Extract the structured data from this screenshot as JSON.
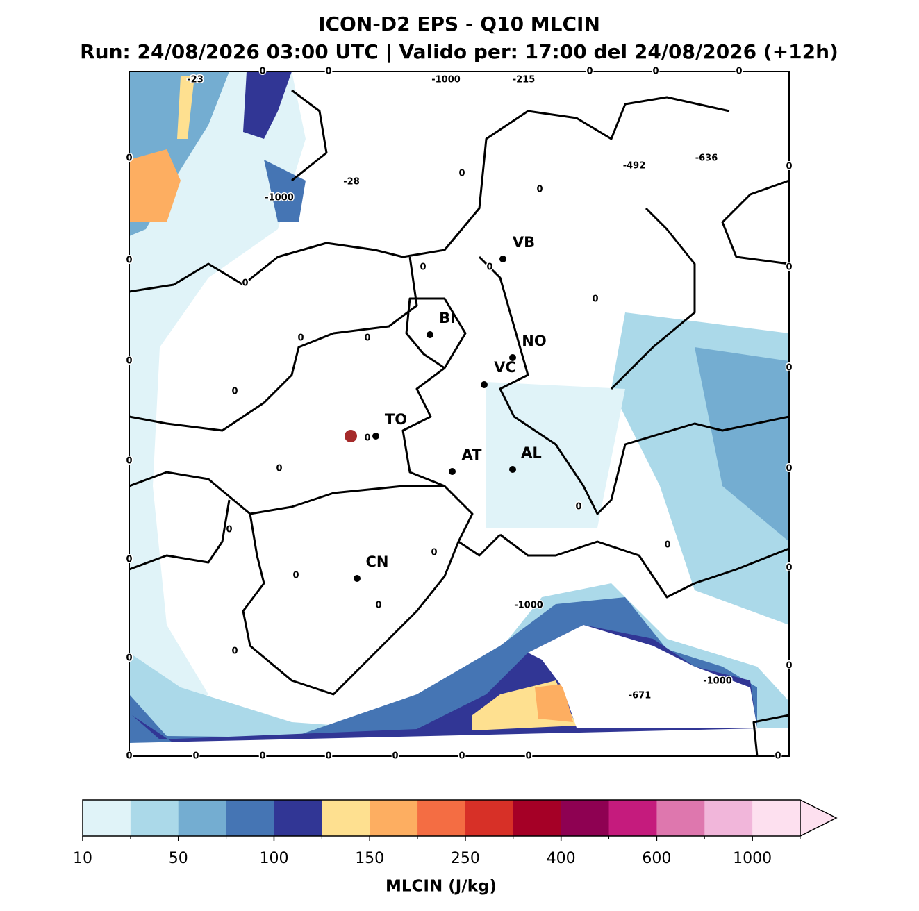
{
  "title": "ICON-D2 EPS - Q10 MLCIN",
  "subtitle": "Run: 24/08/2026 03:00 UTC | Valido per: 17:00 del 24/08/2026 (+12h)",
  "cities": [
    "VB",
    "BI",
    "NO",
    "VC",
    "TO",
    "AT",
    "AL",
    "CN"
  ],
  "map_labels": [
    -23,
    0,
    0,
    -1000,
    -215,
    0,
    0,
    0,
    0,
    -1000,
    -28,
    0,
    0,
    -492,
    -636,
    0,
    0,
    0,
    0,
    0,
    0,
    0,
    0,
    0,
    0,
    0,
    0,
    0,
    0,
    0,
    0,
    0,
    0,
    0,
    0,
    0,
    0,
    0,
    -1000,
    0,
    0,
    0,
    -1000,
    0,
    -671,
    0,
    0,
    0,
    0,
    0,
    0,
    0,
    0
  ],
  "colorbar": {
    "label": "MLCIN (J/kg)",
    "colors": [
      "#e0f3f8",
      "#abd9e9",
      "#74add1",
      "#4575b4",
      "#313695",
      "#fee090",
      "#fdae61",
      "#f46d43",
      "#d73027",
      "#a50026",
      "#8e0152",
      "#c51b7d",
      "#de77ae",
      "#f1b6da",
      "#fde0ef"
    ],
    "ticks": [
      10,
      50,
      100,
      150,
      250,
      400,
      600,
      1000
    ]
  }
}
